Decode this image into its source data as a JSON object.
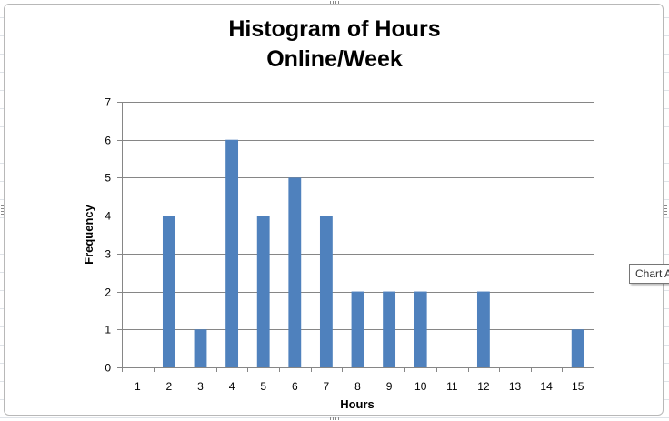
{
  "chart_data": {
    "type": "bar",
    "title": [
      "Histogram of Hours",
      "Online/Week"
    ],
    "xlabel": "Hours",
    "ylabel": "Frequency",
    "categories": [
      "1",
      "2",
      "3",
      "4",
      "5",
      "6",
      "7",
      "8",
      "9",
      "10",
      "11",
      "12",
      "13",
      "14",
      "15"
    ],
    "values": [
      0,
      4,
      1,
      6,
      4,
      5,
      4,
      2,
      2,
      2,
      0,
      2,
      0,
      0,
      1
    ],
    "ylim": [
      0,
      7
    ],
    "yticks": [
      "0",
      "1",
      "2",
      "3",
      "4",
      "5",
      "6",
      "7"
    ],
    "grid": true,
    "bar_color": "#4f81bd"
  },
  "tooltip": {
    "label": "Chart A"
  }
}
